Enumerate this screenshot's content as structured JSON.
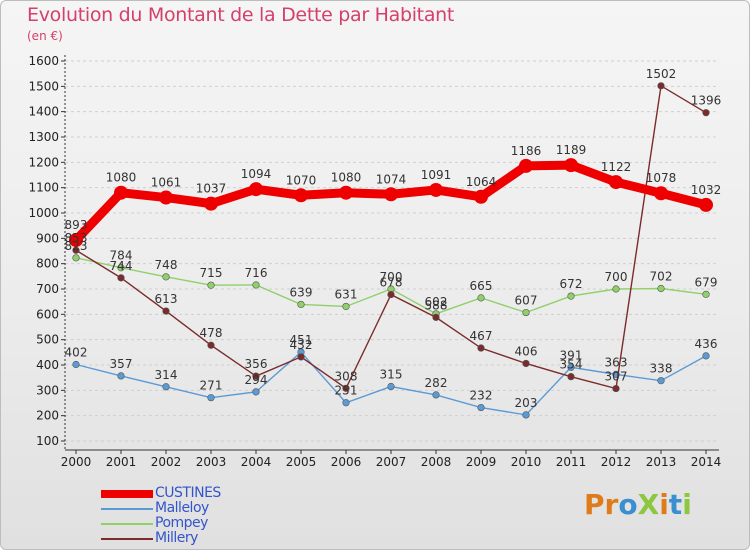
{
  "title": "Evolution du Montant de la Dette par Habitant",
  "unit": "(en €)",
  "brand": {
    "text": "ProXiti",
    "colors": [
      "#e07b1a",
      "#e07b1a",
      "#3a8fd0",
      "#8dc63f",
      "#e07b1a",
      "#3a8fd0",
      "#8dc63f"
    ]
  },
  "colors": {
    "title": "#d4406b",
    "grid": "#cfcfcf",
    "axis": "#333333",
    "tick_label": "#222222",
    "data_label": "#333333"
  },
  "chart_data": {
    "type": "line",
    "x": [
      2000,
      2001,
      2002,
      2003,
      2004,
      2005,
      2006,
      2007,
      2008,
      2009,
      2010,
      2011,
      2012,
      2013,
      2014
    ],
    "ylim": [
      100,
      1600
    ],
    "yticks": [
      100,
      200,
      300,
      400,
      500,
      600,
      700,
      800,
      900,
      1000,
      1100,
      1200,
      1300,
      1400,
      1500,
      1600
    ],
    "grid": "horizontal dashed",
    "legend_position": "bottom-left",
    "series": [
      {
        "name": "CUSTINES",
        "color": "#ee0000",
        "emphasis": true,
        "values": [
          893,
          1080,
          1061,
          1037,
          1094,
          1070,
          1080,
          1074,
          1091,
          1064,
          1186,
          1189,
          1122,
          1078,
          1032
        ]
      },
      {
        "name": "Malleloy",
        "color": "#5b9bd5",
        "emphasis": false,
        "values": [
          402,
          357,
          314,
          271,
          294,
          451,
          251,
          315,
          282,
          232,
          203,
          391,
          363,
          338,
          436
        ],
        "labels": [
          "402",
          "357",
          "314",
          "271",
          "294",
          "451",
          "251",
          "315",
          "282",
          "232",
          "203",
          "391",
          "363",
          "338",
          "436"
        ]
      },
      {
        "name": "Pompey",
        "color": "#8fd06a",
        "emphasis": false,
        "values": [
          823,
          784,
          748,
          715,
          716,
          639,
          631,
          700,
          602,
          665,
          607,
          672,
          700,
          702,
          679
        ],
        "labels": [
          "823",
          "784",
          "748",
          "715",
          "716",
          "639",
          "631",
          "700",
          "602",
          "665",
          "607",
          "672",
          "700",
          "702",
          "679"
        ]
      },
      {
        "name": "Millery",
        "color": "#7b2b2b",
        "emphasis": false,
        "values": [
          853,
          744,
          613,
          478,
          356,
          432,
          308,
          678,
          588,
          467,
          406,
          354,
          307,
          1502,
          1396
        ],
        "labels": [
          "853",
          "744",
          "613",
          "478",
          "356",
          "432",
          "308",
          "678",
          "588",
          "467",
          "406",
          "354",
          "307",
          "1502",
          "1396"
        ]
      }
    ]
  }
}
